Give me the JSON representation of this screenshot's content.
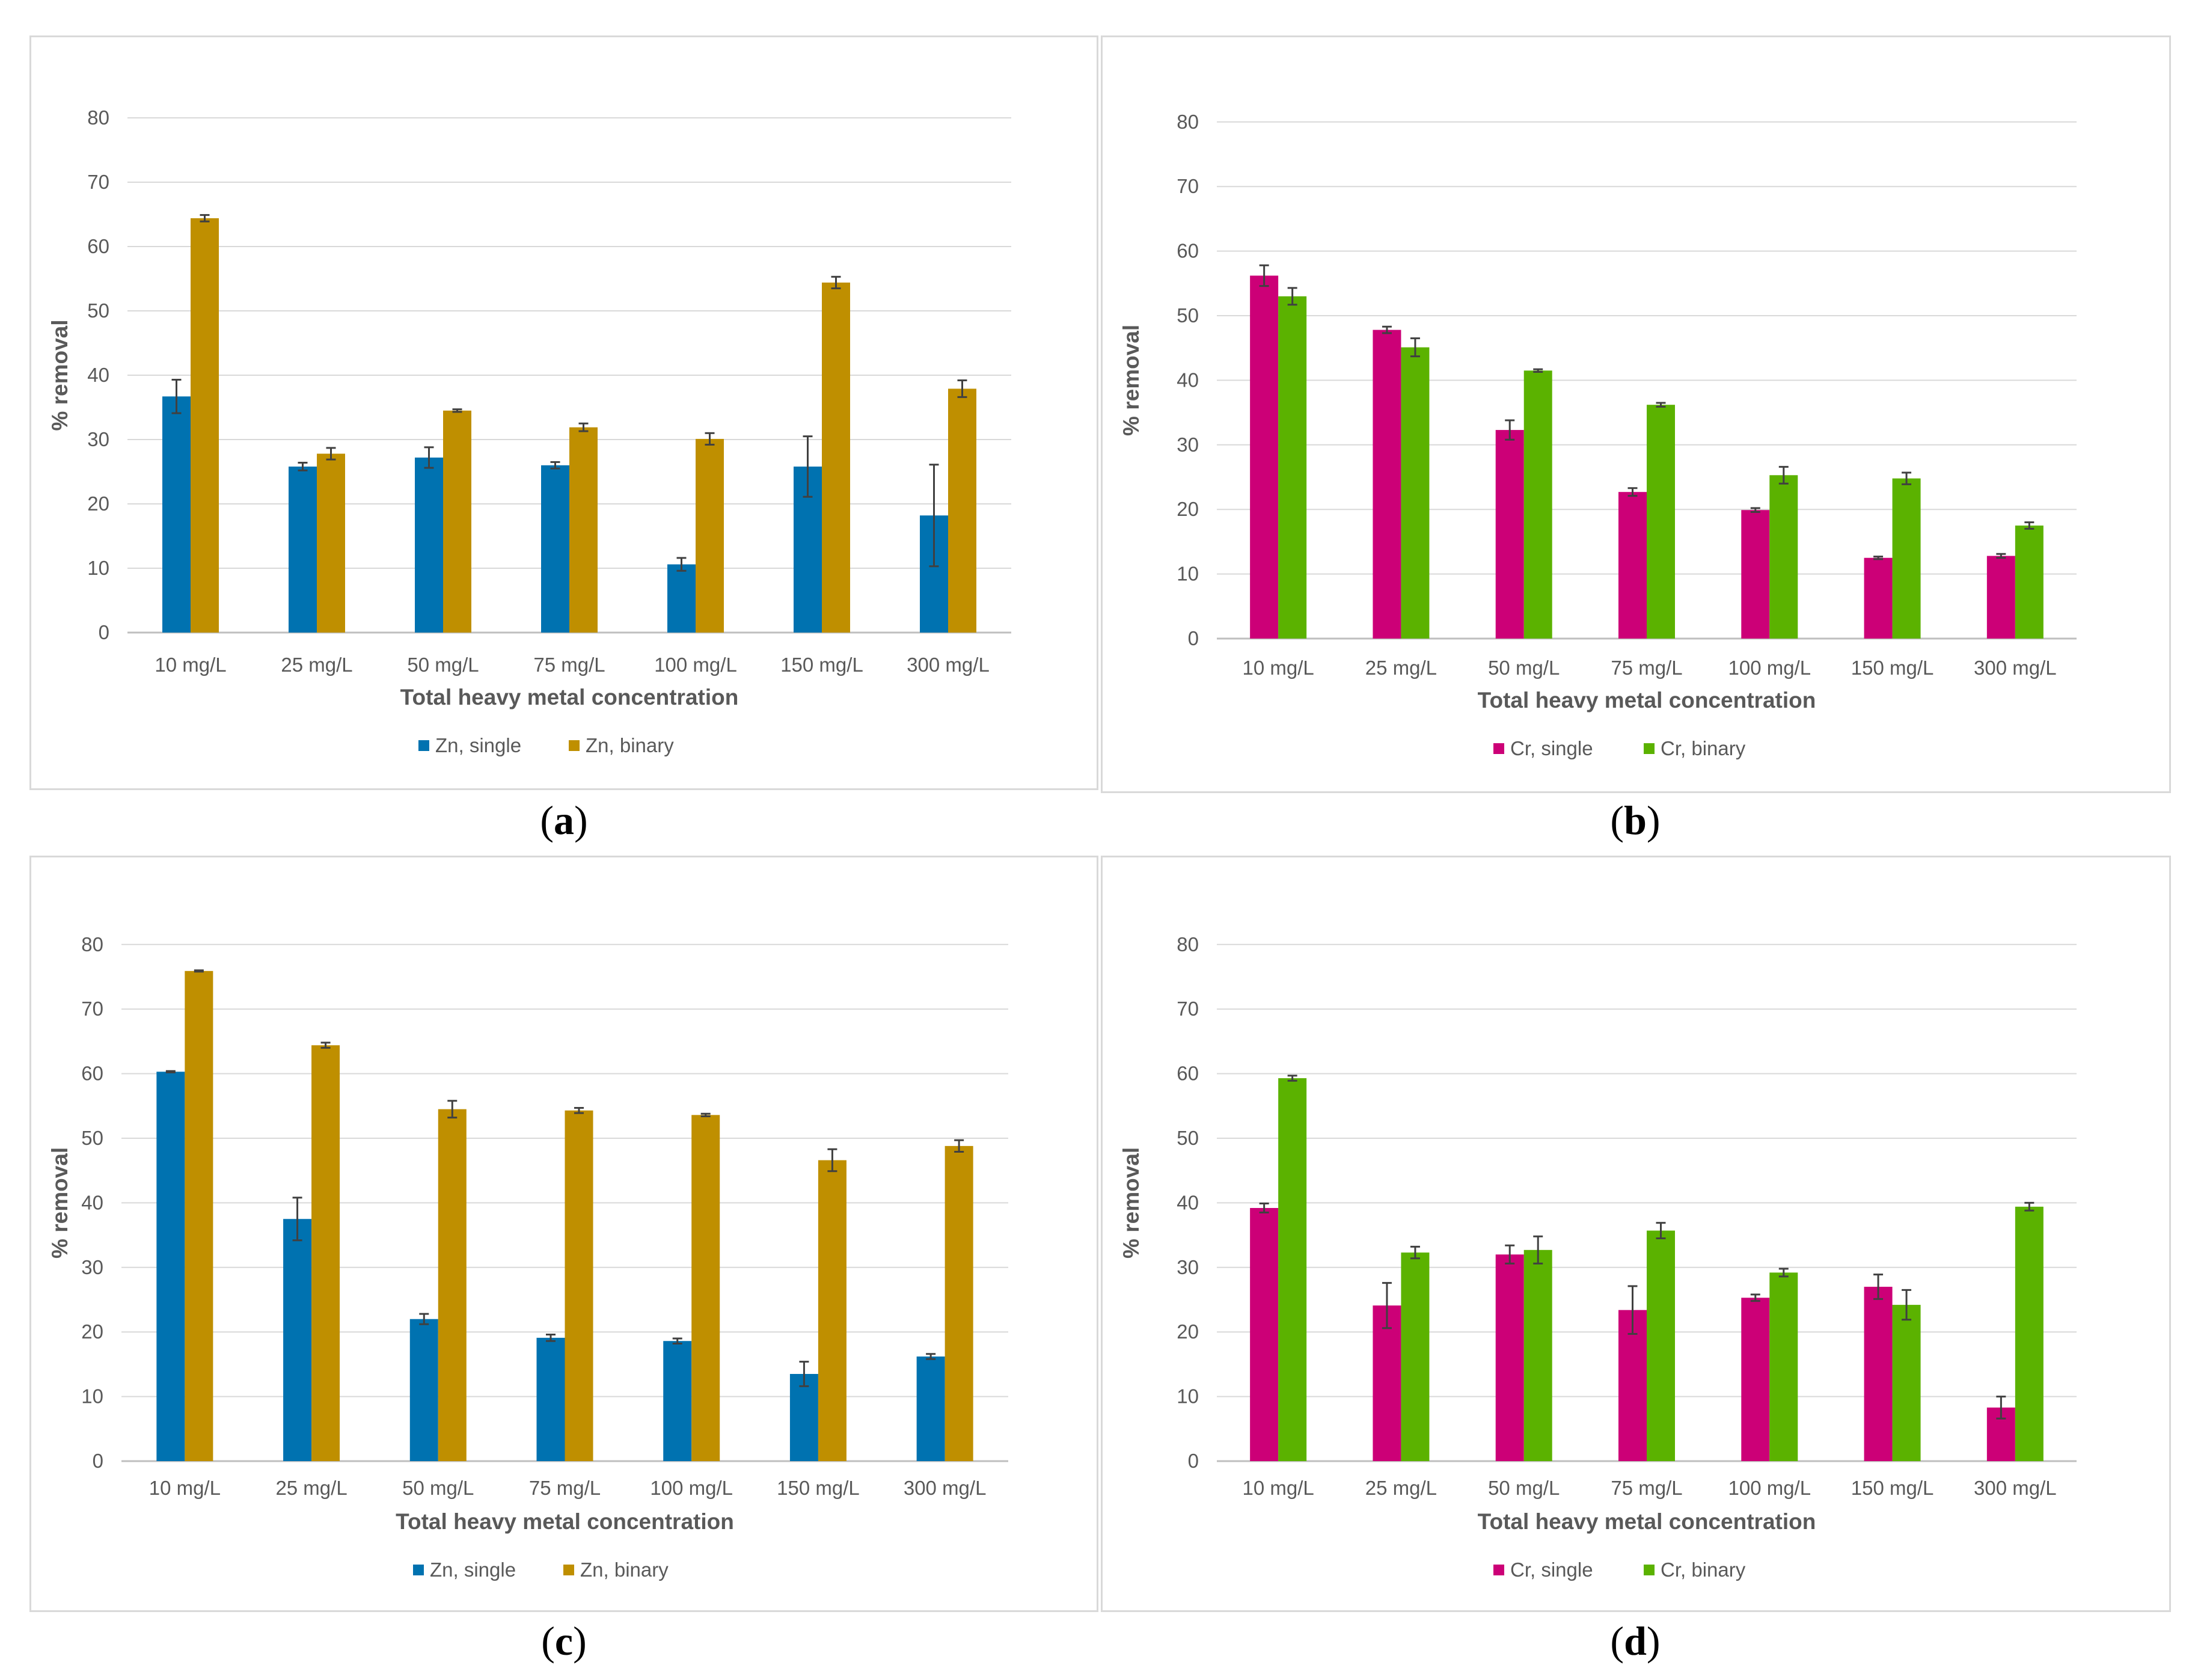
{
  "chart_data": [
    {
      "type": "bar",
      "panel_label": "a",
      "categories": [
        "10 mg/L",
        "25 mg/L",
        "50 mg/L",
        "75 mg/L",
        "100 mg/L",
        "150 mg/L",
        "300 mg/L"
      ],
      "series": [
        {
          "name": "Zn, single",
          "color": "#0072b0",
          "values": [
            36.7,
            25.8,
            27.2,
            26.0,
            10.6,
            25.8,
            18.2
          ],
          "errors": [
            2.6,
            0.6,
            1.6,
            0.5,
            1.0,
            4.7,
            7.9
          ]
        },
        {
          "name": "Zn, binary",
          "color": "#bf8f00",
          "values": [
            64.4,
            27.8,
            34.5,
            31.9,
            30.1,
            54.4,
            37.9
          ],
          "errors": [
            0.5,
            0.9,
            0.2,
            0.6,
            0.9,
            0.9,
            1.3
          ]
        }
      ],
      "xlabel": "Total heavy metal concentration",
      "ylabel": "% removal",
      "ylim": [
        0,
        80
      ],
      "yticks": [
        0,
        10,
        20,
        30,
        40,
        50,
        60,
        70,
        80
      ],
      "grid": true,
      "legend_position": "bottom"
    },
    {
      "type": "bar",
      "panel_label": "b",
      "categories": [
        "10 mg/L",
        "25 mg/L",
        "50 mg/L",
        "75 mg/L",
        "100 mg/L",
        "150 mg/L",
        "300 mg/L"
      ],
      "series": [
        {
          "name": "Cr, single",
          "color": "#cc0077",
          "values": [
            56.2,
            47.8,
            32.3,
            22.7,
            19.9,
            12.5,
            12.8
          ],
          "errors": [
            1.6,
            0.5,
            1.5,
            0.6,
            0.3,
            0.2,
            0.3
          ]
        },
        {
          "name": "Cr, binary",
          "color": "#5bb200",
          "values": [
            53.0,
            45.1,
            41.5,
            36.2,
            25.3,
            24.8,
            17.5
          ],
          "errors": [
            1.3,
            1.4,
            0.2,
            0.3,
            1.3,
            0.9,
            0.5
          ]
        }
      ],
      "xlabel": "Total heavy metal concentration",
      "ylabel": "% removal",
      "ylim": [
        0,
        80
      ],
      "yticks": [
        0,
        10,
        20,
        30,
        40,
        50,
        60,
        70,
        80
      ],
      "grid": true,
      "legend_position": "bottom"
    },
    {
      "type": "bar",
      "panel_label": "c",
      "categories": [
        "10 mg/L",
        "25 mg/L",
        "50 mg/L",
        "75 mg/L",
        "100 mg/L",
        "150 mg/L",
        "300 mg/L"
      ],
      "series": [
        {
          "name": "Zn, single",
          "color": "#0072b0",
          "values": [
            60.3,
            37.5,
            22.0,
            19.1,
            18.6,
            13.5,
            16.2
          ],
          "errors": [
            0.1,
            3.3,
            0.8,
            0.5,
            0.4,
            1.9,
            0.4
          ]
        },
        {
          "name": "Zn, binary",
          "color": "#bf8f00",
          "values": [
            75.9,
            64.4,
            54.5,
            54.3,
            53.6,
            46.6,
            48.8
          ],
          "errors": [
            0.1,
            0.4,
            1.3,
            0.4,
            0.2,
            1.7,
            0.9
          ]
        }
      ],
      "xlabel": "Total heavy metal concentration",
      "ylabel": "% removal",
      "ylim": [
        0,
        80
      ],
      "yticks": [
        0,
        10,
        20,
        30,
        40,
        50,
        60,
        70,
        80
      ],
      "grid": true,
      "legend_position": "bottom"
    },
    {
      "type": "bar",
      "panel_label": "d",
      "categories": [
        "10 mg/L",
        "25 mg/L",
        "50 mg/L",
        "75 mg/L",
        "100 mg/L",
        "150 mg/L",
        "300 mg/L"
      ],
      "series": [
        {
          "name": "Cr, single",
          "color": "#cc0077",
          "values": [
            39.2,
            24.1,
            32.0,
            23.4,
            25.3,
            27.0,
            8.3
          ],
          "errors": [
            0.7,
            3.5,
            1.4,
            3.7,
            0.5,
            1.9,
            1.7
          ]
        },
        {
          "name": "Cr, binary",
          "color": "#5bb200",
          "values": [
            59.3,
            32.3,
            32.7,
            35.7,
            29.2,
            24.2,
            39.4
          ],
          "errors": [
            0.4,
            0.9,
            2.1,
            1.2,
            0.6,
            2.3,
            0.6
          ]
        }
      ],
      "xlabel": "Total heavy metal concentration",
      "ylabel": "% removal",
      "ylim": [
        0,
        80
      ],
      "yticks": [
        0,
        10,
        20,
        30,
        40,
        50,
        60,
        70,
        80
      ],
      "grid": true,
      "legend_position": "bottom"
    }
  ]
}
